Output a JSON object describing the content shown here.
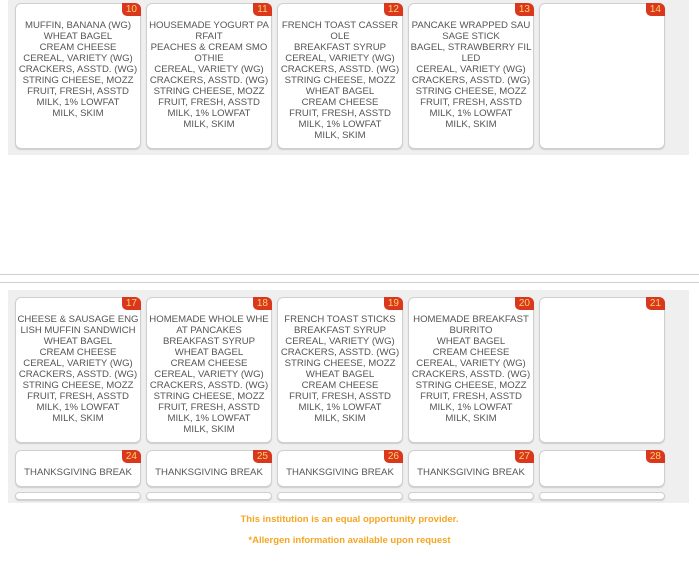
{
  "week1": [
    {
      "day": "10",
      "items": [
        "MUFFIN, BANANA (WG)",
        "WHEAT BAGEL",
        "CREAM CHEESE",
        "CEREAL, VARIETY (WG)",
        "CRACKERS, ASSTD. (WG)",
        "STRING CHEESE, MOZZ",
        "FRUIT, FRESH, ASSTD",
        "MILK, 1% LOWFAT",
        "MILK, SKIM"
      ]
    },
    {
      "day": "11",
      "items": [
        "HOUSEMADE YOGURT PARFAIT",
        "PEACHES & CREAM SMOOTHIE",
        "CEREAL, VARIETY (WG)",
        "CRACKERS, ASSTD. (WG)",
        "STRING CHEESE, MOZZ",
        "FRUIT, FRESH, ASSTD",
        "MILK, 1% LOWFAT",
        "MILK, SKIM"
      ]
    },
    {
      "day": "12",
      "items": [
        "FRENCH TOAST CASSEROLE",
        "BREAKFAST SYRUP",
        "CEREAL, VARIETY (WG)",
        "CRACKERS, ASSTD. (WG)",
        "STRING CHEESE, MOZZ",
        "WHEAT BAGEL",
        "CREAM CHEESE",
        "FRUIT, FRESH, ASSTD",
        "MILK, 1% LOWFAT",
        "MILK, SKIM"
      ]
    },
    {
      "day": "13",
      "items": [
        "PANCAKE WRAPPED SAUSAGE STICK",
        "BAGEL, STRAWBERRY FILLED",
        "CEREAL, VARIETY (WG)",
        "CRACKERS, ASSTD. (WG)",
        "STRING CHEESE, MOZZ",
        "FRUIT, FRESH, ASSTD",
        "MILK, 1% LOWFAT",
        "MILK, SKIM"
      ]
    },
    {
      "day": "14",
      "items": []
    }
  ],
  "week2": [
    {
      "day": "17",
      "items": [
        "CHEESE & SAUSAGE ENGLISH MUFFIN SANDWICH",
        "WHEAT BAGEL",
        "CREAM CHEESE",
        "CEREAL, VARIETY (WG)",
        "CRACKERS, ASSTD. (WG)",
        "STRING CHEESE, MOZZ",
        "FRUIT, FRESH, ASSTD",
        "MILK, 1% LOWFAT",
        "MILK, SKIM"
      ]
    },
    {
      "day": "18",
      "items": [
        "HOMEMADE WHOLE WHEAT PANCAKES",
        "BREAKFAST SYRUP",
        "WHEAT BAGEL",
        "CREAM CHEESE",
        "CEREAL, VARIETY (WG)",
        "CRACKERS, ASSTD. (WG)",
        "STRING CHEESE, MOZZ",
        "FRUIT, FRESH, ASSTD",
        "MILK, 1% LOWFAT",
        "MILK, SKIM"
      ]
    },
    {
      "day": "19",
      "items": [
        "FRENCH TOAST STICKS",
        "BREAKFAST SYRUP",
        "CEREAL, VARIETY (WG)",
        "CRACKERS, ASSTD. (WG)",
        "STRING CHEESE, MOZZ",
        "WHEAT BAGEL",
        "CREAM CHEESE",
        "FRUIT, FRESH, ASSTD",
        "MILK, 1% LOWFAT",
        "MILK, SKIM"
      ]
    },
    {
      "day": "20",
      "items": [
        "HOMEMADE BREAKFAST BURRITO",
        "WHEAT BAGEL",
        "CREAM CHEESE",
        "CEREAL, VARIETY (WG)",
        "CRACKERS, ASSTD. (WG)",
        "STRING CHEESE, MOZZ",
        "FRUIT, FRESH, ASSTD",
        "MILK, 1% LOWFAT",
        "MILK, SKIM"
      ]
    },
    {
      "day": "21",
      "items": []
    }
  ],
  "week3": [
    {
      "day": "24",
      "items": [
        "THANKSGIVING BREAK"
      ]
    },
    {
      "day": "25",
      "items": [
        "THANKSGIVING BREAK"
      ]
    },
    {
      "day": "26",
      "items": [
        "THANKSGIVING BREAK"
      ]
    },
    {
      "day": "27",
      "items": [
        "THANKSGIVING BREAK"
      ]
    },
    {
      "day": "28",
      "items": []
    }
  ],
  "footer": {
    "equal_opportunity": "This institution is an equal opportunity provider.",
    "allergen": "*Allergen information available upon request"
  },
  "colors": {
    "badge": "#d9381e",
    "footer_text": "#f5a623"
  }
}
